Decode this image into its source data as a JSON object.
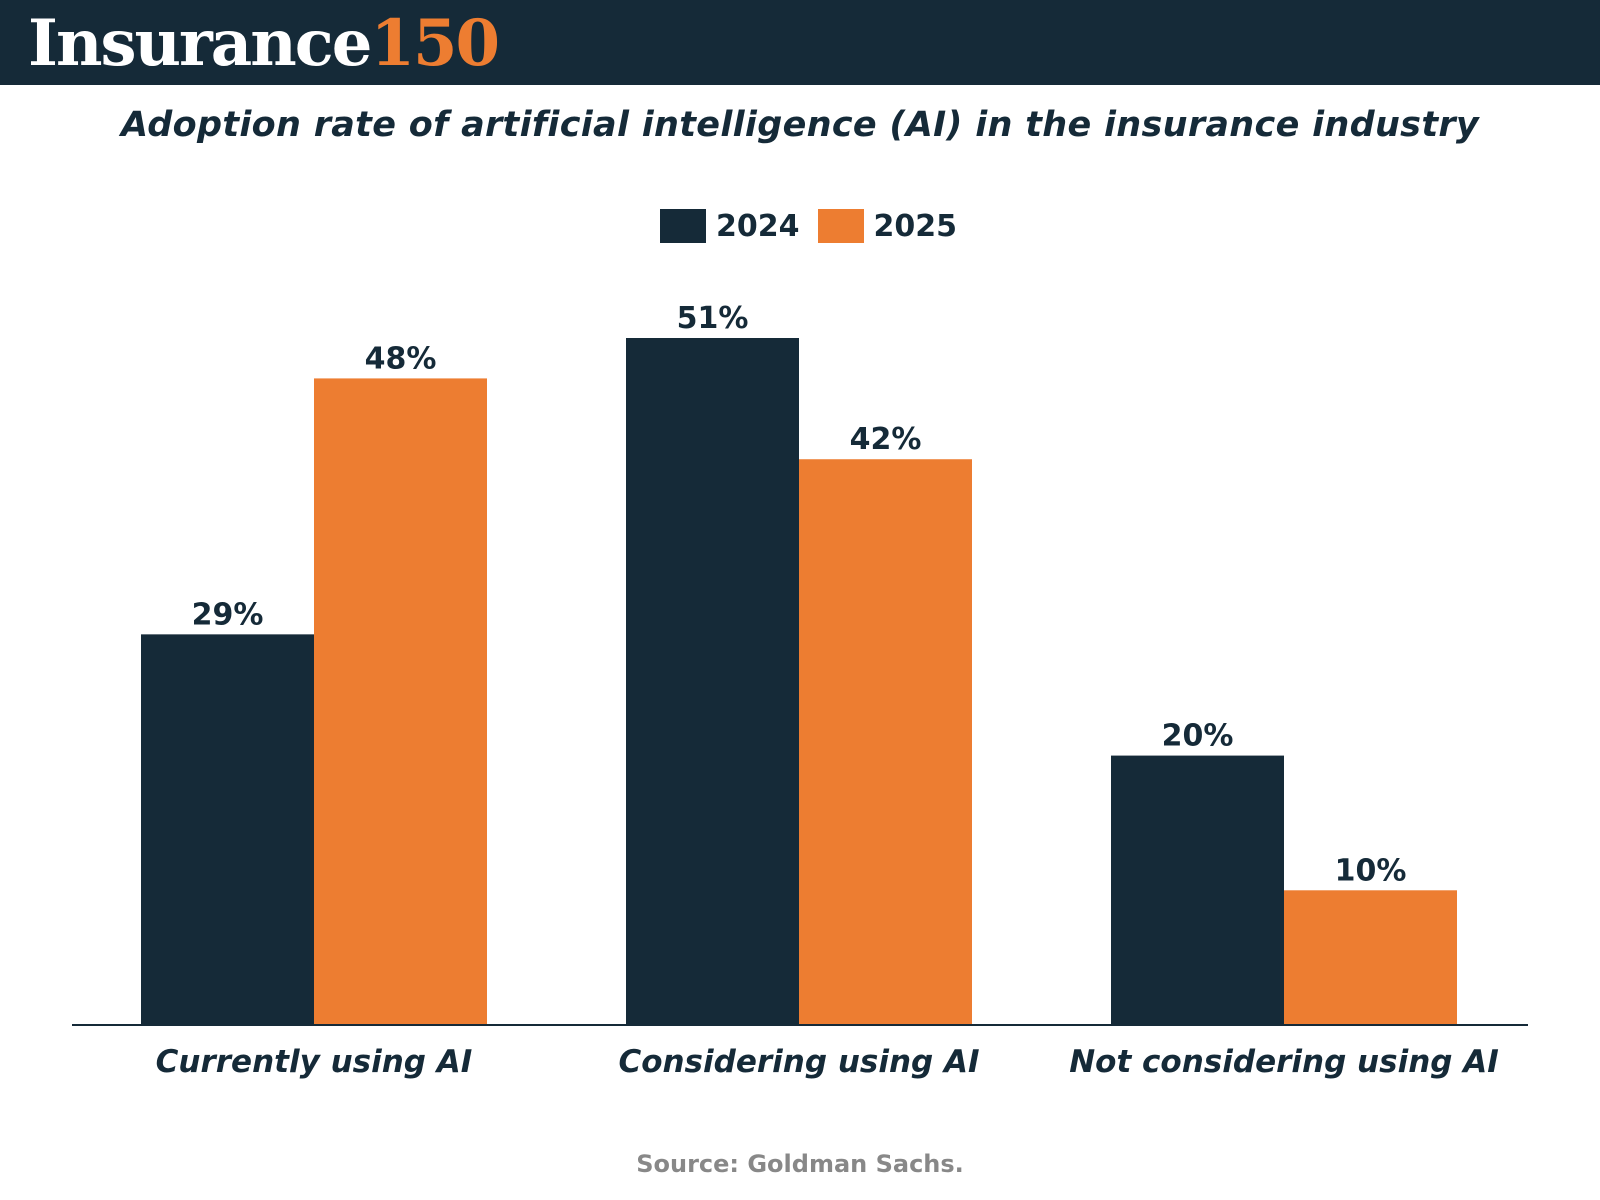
{
  "header": {
    "brand_word": "Insurance",
    "brand_number": "150",
    "background_color": "#152a38",
    "accent_color": "#ed7d31"
  },
  "chart_data": {
    "type": "bar",
    "title": "Adoption rate of artificial intelligence (AI) in the insurance industry",
    "categories": [
      "Currently using AI",
      "Considering using AI",
      "Not considering using AI"
    ],
    "series": [
      {
        "name": "2024",
        "values": [
          29,
          51,
          20
        ],
        "labels": [
          "29%",
          "51%",
          "20%"
        ],
        "color": "#152a38"
      },
      {
        "name": "2025",
        "values": [
          48,
          42,
          10
        ],
        "labels": [
          "48%",
          "42%",
          "10%"
        ],
        "color": "#ed7d31"
      }
    ],
    "ylim": [
      0,
      51
    ],
    "grid": false,
    "legend": "top-center",
    "xlabel": "",
    "ylabel": ""
  },
  "source": "Source: Goldman Sachs."
}
